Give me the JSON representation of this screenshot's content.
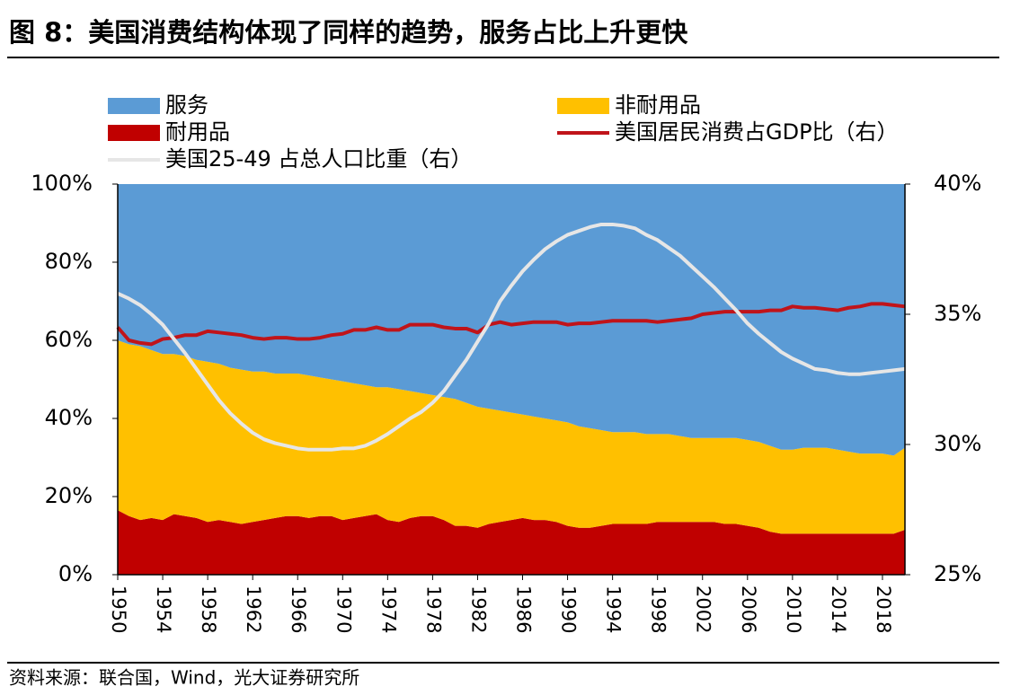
{
  "chart_data": {
    "type": "stacked_area",
    "title": "图 8：美国消费结构体现了同样的趋势，服务占比上升更快",
    "source": "资料来源：联合国，Wind，光大证券研究所",
    "x": [
      1950,
      1951,
      1952,
      1953,
      1954,
      1955,
      1956,
      1957,
      1958,
      1959,
      1960,
      1961,
      1962,
      1963,
      1964,
      1965,
      1966,
      1967,
      1968,
      1969,
      1970,
      1971,
      1972,
      1973,
      1974,
      1975,
      1976,
      1977,
      1978,
      1979,
      1980,
      1981,
      1982,
      1983,
      1984,
      1985,
      1986,
      1987,
      1988,
      1989,
      1990,
      1991,
      1992,
      1993,
      1994,
      1995,
      1996,
      1997,
      1998,
      1999,
      2000,
      2001,
      2002,
      2003,
      2004,
      2005,
      2006,
      2007,
      2008,
      2009,
      2010,
      2011,
      2012,
      2013,
      2014,
      2015,
      2016,
      2017,
      2018,
      2019,
      2020
    ],
    "xlim": [
      1950,
      2020
    ],
    "xticks": [
      1950,
      1954,
      1958,
      1962,
      1966,
      1970,
      1974,
      1978,
      1982,
      1986,
      1990,
      1994,
      1998,
      2002,
      2006,
      2010,
      2014,
      2018
    ],
    "ylim": [
      0,
      100
    ],
    "yticks": [
      {
        "value": 0,
        "label": "0%"
      },
      {
        "value": 20,
        "label": "20%"
      },
      {
        "value": 40,
        "label": "40%"
      },
      {
        "value": 60,
        "label": "60%"
      },
      {
        "value": 80,
        "label": "80%"
      },
      {
        "value": 100,
        "label": "100%"
      }
    ],
    "y2lim": [
      25,
      40
    ],
    "y2ticks": [
      {
        "value": 25,
        "label": "25%"
      },
      {
        "value": 30,
        "label": "30%"
      },
      {
        "value": 35,
        "label": "35%"
      },
      {
        "value": 40,
        "label": "40%"
      }
    ],
    "series": [
      {
        "name": "服务",
        "type": "area",
        "color": "#5b9bd5",
        "values": [
          40,
          41,
          41.5,
          42.5,
          43.5,
          43.5,
          44,
          45,
          45.5,
          46,
          47,
          47.5,
          48,
          48,
          48.5,
          48.5,
          48.5,
          49,
          49.5,
          50,
          50.5,
          51,
          51.5,
          52,
          52,
          52.5,
          53,
          53.5,
          54,
          54.5,
          55,
          56,
          57,
          57.5,
          58,
          58.5,
          59,
          59.5,
          60,
          60.5,
          61,
          62,
          62.5,
          63,
          63.5,
          63.5,
          63.5,
          64,
          64,
          64,
          64.5,
          65,
          65,
          65,
          65,
          65,
          65.5,
          66,
          67,
          68,
          68,
          67.5,
          67.5,
          67.5,
          68,
          68.5,
          69,
          69,
          69,
          69.5,
          67.5
        ]
      },
      {
        "name": "非耐用品",
        "type": "area",
        "color": "#ffc000",
        "values": [
          43.5,
          44,
          44.5,
          43,
          42.5,
          41,
          41,
          40.5,
          41,
          40,
          39.5,
          39.5,
          38.5,
          38,
          37,
          36.5,
          36.5,
          36.5,
          35.5,
          35,
          35.5,
          34.5,
          33.5,
          32.5,
          34,
          34,
          32.5,
          31.5,
          31,
          31.5,
          32.5,
          31.5,
          31,
          29.5,
          28.5,
          27.5,
          26.5,
          26.5,
          26,
          26,
          26.5,
          26,
          25.5,
          24.5,
          23.5,
          23.5,
          23.5,
          23,
          22.5,
          22.5,
          22,
          21.5,
          21.5,
          21.5,
          22,
          22,
          22,
          22,
          22,
          21.5,
          21.5,
          22,
          22,
          22,
          21.5,
          21,
          20.5,
          20.5,
          20.5,
          20,
          21
        ]
      },
      {
        "name": "耐用品",
        "type": "area",
        "color": "#c00000",
        "values": [
          16.5,
          15,
          14,
          14.5,
          14,
          15.5,
          15,
          14.5,
          13.5,
          14,
          13.5,
          13,
          13.5,
          14,
          14.5,
          15,
          15,
          14.5,
          15,
          15,
          14,
          14.5,
          15,
          15.5,
          14,
          13.5,
          14.5,
          15,
          15,
          14,
          12.5,
          12.5,
          12,
          13,
          13.5,
          14,
          14.5,
          14,
          14,
          13.5,
          12.5,
          12,
          12,
          12.5,
          13,
          13,
          13,
          13,
          13.5,
          13.5,
          13.5,
          13.5,
          13.5,
          13.5,
          13,
          13,
          12.5,
          12,
          11,
          10.5,
          10.5,
          10.5,
          10.5,
          10.5,
          10.5,
          10.5,
          10.5,
          10.5,
          10.5,
          10.5,
          11.5
        ]
      },
      {
        "name": "美国居民消费占GDP比（右）",
        "type": "line",
        "axis": "y2",
        "color": "#c0141a",
        "values": [
          34.5,
          34,
          33.9,
          33.85,
          34.05,
          34.1,
          34.2,
          34.2,
          34.35,
          34.3,
          34.25,
          34.2,
          34.1,
          34.05,
          34.1,
          34.1,
          34.05,
          34.05,
          34.1,
          34.2,
          34.25,
          34.4,
          34.4,
          34.5,
          34.4,
          34.4,
          34.6,
          34.6,
          34.6,
          34.5,
          34.45,
          34.45,
          34.3,
          34.6,
          34.7,
          34.6,
          34.65,
          34.7,
          34.7,
          34.7,
          34.6,
          34.65,
          34.65,
          34.7,
          34.75,
          34.75,
          34.75,
          34.75,
          34.7,
          34.75,
          34.8,
          34.85,
          35,
          35.05,
          35.1,
          35.1,
          35.1,
          35.1,
          35.15,
          35.15,
          35.3,
          35.25,
          35.25,
          35.2,
          35.15,
          35.25,
          35.3,
          35.4,
          35.4,
          35.35,
          35.3
        ]
      },
      {
        "name": "美国25-49 占总人口比重（右）",
        "type": "line",
        "axis": "y2",
        "color": "#e6e6e6",
        "values": [
          35.8,
          35.6,
          35.35,
          35,
          34.6,
          34.05,
          33.5,
          32.9,
          32.3,
          31.7,
          31.2,
          30.8,
          30.45,
          30.2,
          30.05,
          29.95,
          29.85,
          29.8,
          29.8,
          29.8,
          29.85,
          29.85,
          29.95,
          30.15,
          30.4,
          30.7,
          31,
          31.25,
          31.6,
          32.05,
          32.65,
          33.25,
          33.95,
          34.65,
          35.5,
          36.1,
          36.65,
          37.1,
          37.5,
          37.8,
          38.05,
          38.2,
          38.35,
          38.45,
          38.45,
          38.4,
          38.3,
          38.05,
          37.85,
          37.55,
          37.25,
          36.85,
          36.45,
          36.05,
          35.6,
          35.15,
          34.65,
          34.25,
          33.9,
          33.55,
          33.3,
          33.1,
          32.9,
          32.85,
          32.75,
          32.7,
          32.7,
          32.75,
          32.8,
          32.85,
          32.9
        ]
      }
    ]
  }
}
